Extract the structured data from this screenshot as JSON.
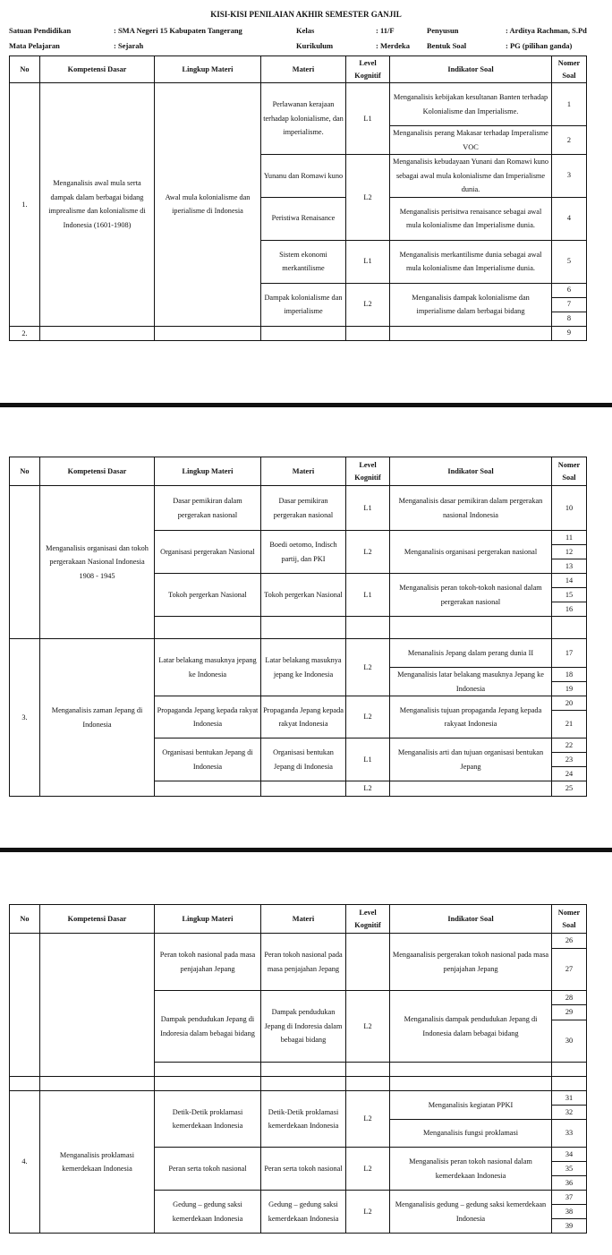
{
  "header": {
    "title": "KISI-KISI PENILAIAN AKHIR SEMESTER GANJIL",
    "fields": [
      {
        "label": "Satuan Pendidikan",
        "value": ": SMA Negeri 15 Kabupaten Tangerang"
      },
      {
        "label": "Kelas",
        "value": ": 11/F"
      },
      {
        "label": "Penyusun",
        "value": ": Arditya Rachman, S.Pd"
      },
      {
        "label": "Mata Pelajaran",
        "value": ": Sejarah"
      },
      {
        "label": "Kurikulum",
        "value": ": Merdeka"
      },
      {
        "label": "Bentuk Soal",
        "value": ": PG (pilihan ganda)"
      }
    ]
  },
  "columns": [
    "No",
    "Kompetensi Dasar",
    "Lingkup Materi",
    "Materi",
    "Level Kognitif",
    "Indikator Soal",
    "Nomer Soal"
  ],
  "tables": [
    {
      "groups": [
        {
          "no": "1.",
          "kd": "Menganalisis awal mula serta dampak dalam berbagai bidang imprealisme dan kolonialisme di Indonesia (1601-1908)",
          "lingkup": "Awal mula kolonialisme dan iperialisme di Indonesia",
          "items": [
            {
              "materi": "Perlawanan kerajaan terhadap kolonialisme, dan imperialisme.",
              "level": "L1",
              "indicators": [
                {
                  "text": "Menganalisis kebijakan kesultanan Banten terhadap Kolonialisme dan Imperialisme.",
                  "soal": [
                    "1"
                  ]
                },
                {
                  "text": "Menganalisis perang Makasar terhadap Imperalisme VOC",
                  "soal": [
                    "2"
                  ]
                }
              ]
            },
            {
              "materi": "Yunanu dan Romawi kuno",
              "level": "L2",
              "indicators": [
                {
                  "text": "Menganalisis kebudayaan Yunani dan Romawi kuno sebagai awal mula kolonialisme dan Imperialisme dunia.",
                  "soal": [
                    "3"
                  ]
                }
              ]
            },
            {
              "materi": "Peristiwa Renaisance",
              "level": null,
              "indicators": [
                {
                  "text": "Menganalisis perisitwa renaisance sebagai awal mula kolonialisme dan Imperialisme dunia.",
                  "soal": [
                    "4"
                  ]
                }
              ]
            },
            {
              "materi": "Sistem ekonomi merkantilisme",
              "level": "L1",
              "indicators": [
                {
                  "text": "Menganalisis merkantilisme dunia sebagai awal mula kolonialisme dan Imperialisme dunia.",
                  "soal": [
                    "5"
                  ]
                }
              ]
            },
            {
              "materi": "Dampak kolonialisme dan imperialisme",
              "level": "L2",
              "indicators": [
                {
                  "text": "Menganalisis dampak kolonialisme dan imperialisme dalam berbagai bidang",
                  "soal": [
                    "6",
                    "7",
                    "8"
                  ]
                }
              ]
            }
          ]
        },
        {
          "no": "2.",
          "kd": "",
          "lingkup": "",
          "items": [
            {
              "materi": "",
              "level": "",
              "indicators": [
                {
                  "text": "",
                  "soal": [
                    "9"
                  ]
                }
              ]
            }
          ]
        }
      ]
    },
    {
      "groups": [
        {
          "no": "",
          "kd": "Menganalisis organisasi dan tokoh pergerakaan Nasional Indonesia 1908 - 1945",
          "items": [
            {
              "lingkup": "Dasar pemikiran dalam pergerakan nasional",
              "materi": "Dasar pemikiran pergerakan nasional",
              "level": "L1",
              "indicators": [
                {
                  "text": "Menganalisis dasar pemikiran dalam pergerakan nasional Indonesia",
                  "soal": [
                    "10"
                  ]
                }
              ]
            },
            {
              "lingkup": "Organisasi pergerakan Nasional",
              "materi": "Boedi oetomo, Indisch partij, dan PKI",
              "level": "L2",
              "indicators": [
                {
                  "text": "Menganalisis organisasi pergerakan nasional",
                  "soal": [
                    "11",
                    "12",
                    "13"
                  ]
                }
              ]
            },
            {
              "lingkup": "Tokoh pergerkan Nasional",
              "materi": "Tokoh pergerkan Nasional",
              "level": "L1",
              "indicators": [
                {
                  "text": "Menganalisis peran tokoh-tokoh nasional dalam pergerakan nasional",
                  "soal": [
                    "14",
                    "15",
                    "16"
                  ]
                }
              ]
            },
            {
              "lingkup": "",
              "materi": "",
              "level": "",
              "indicators": [
                {
                  "text": "",
                  "soal": [
                    ""
                  ]
                }
              ]
            }
          ]
        },
        {
          "no": "3.",
          "kd": "Menganalisis zaman Jepang di Indonesia",
          "items": [
            {
              "lingkup": "Latar belakang masuknya jepang ke Indonesia",
              "materi": "Latar belakang masuknya jepang ke Indonesia",
              "level": "L2",
              "indicators": [
                {
                  "text": "Menanalisis Jepang dalam perang dunia II",
                  "soal": [
                    "17"
                  ]
                },
                {
                  "text": "Menganalisis latar belakang masuknya Jepang ke Indonesia",
                  "soal": [
                    "18",
                    "19"
                  ]
                }
              ]
            },
            {
              "lingkup": "Propaganda Jepang kepada rakyat Indonesia",
              "materi": "Propaganda Jepang kepada rakyat Indonesia",
              "level": "L2",
              "indicators": [
                {
                  "text": "Menganalisis tujuan propaganda Jepang kepada rakyaat Indonesia",
                  "soal": [
                    "20",
                    "21"
                  ]
                }
              ]
            },
            {
              "lingkup": "Organisasi bentukan Jepang di Indonesia",
              "materi": "Organisasi bentukan Jepang di Indonesia",
              "level": "L1",
              "indicators": [
                {
                  "text": "Menganalisis arti dan tujuan organisasi bentukan Jepang",
                  "soal": [
                    "22",
                    "23",
                    "24"
                  ]
                }
              ]
            },
            {
              "lingkup": "",
              "materi": "",
              "level": "L2",
              "indicators": [
                {
                  "text": "",
                  "soal": [
                    "25"
                  ]
                }
              ]
            }
          ]
        }
      ]
    },
    {
      "groups": [
        {
          "no": "",
          "kd": "",
          "items": [
            {
              "lingkup": "Peran tokoh nasional pada masa penjajahan Jepang",
              "materi": "Peran tokoh nasional pada masa penjajahan Jepang",
              "level": "",
              "indicators": [
                {
                  "text": "Mengaanalisis pergerakan tokoh nasional pada masa penjajahan Jepang",
                  "soal": [
                    "26",
                    "27"
                  ]
                }
              ]
            },
            {
              "lingkup": "Dampak pendudukan Jepang di Indoresia dalam bebagai bidang",
              "materi": "Dampak pendudukan Jepang di Indoresia dalam bebagai bidang",
              "level": "L2",
              "indicators": [
                {
                  "text": "Menganalisis dampak pendudukan Jepang di Indonesia dalam bebagai bidang",
                  "soal": [
                    "28",
                    "29",
                    "30"
                  ]
                }
              ]
            },
            {
              "lingkup": "",
              "materi": "",
              "level": "",
              "indicators": [
                {
                  "text": "",
                  "soal": [
                    ""
                  ]
                }
              ]
            }
          ]
        },
        {
          "no": "",
          "kd": "",
          "items": [
            {
              "lingkup": "",
              "materi": "",
              "level": "",
              "indicators": [
                {
                  "text": "",
                  "soal": [
                    ""
                  ]
                }
              ]
            }
          ]
        },
        {
          "no": "4.",
          "kd": "Menganalisis proklamasi kemerdekaan Indonesia",
          "items": [
            {
              "lingkup": "Detik-Detik proklamasi kemerdekaan Indonesia",
              "materi": "Detik-Detik proklamasi kemerdekaan Indonesia",
              "level": "L2",
              "indicators": [
                {
                  "text": "Menganalisis kegiatan PPKI",
                  "soal": [
                    "31",
                    "32"
                  ]
                },
                {
                  "text": "Menganalisis fungsi proklamasi",
                  "soal": [
                    "33"
                  ]
                }
              ]
            },
            {
              "lingkup": "Peran serta tokoh nasional",
              "materi": "Peran serta tokoh nasional",
              "level": "L2",
              "indicators": [
                {
                  "text": "Menganalisis peran tokoh nasional dalam kemerdekaan Indonesia",
                  "soal": [
                    "34",
                    "35",
                    "36"
                  ]
                }
              ]
            },
            {
              "lingkup": "Gedung – gedung saksi kemerdekaan Indonesia",
              "materi": "Gedung – gedung saksi kemerdekaan Indonesia",
              "level": "L2",
              "indicators": [
                {
                  "text": "Menganalisis gedung – gedung saksi kemerdekaan Indonesia",
                  "soal": [
                    "37",
                    "38",
                    "39"
                  ]
                }
              ]
            }
          ]
        }
      ]
    }
  ]
}
